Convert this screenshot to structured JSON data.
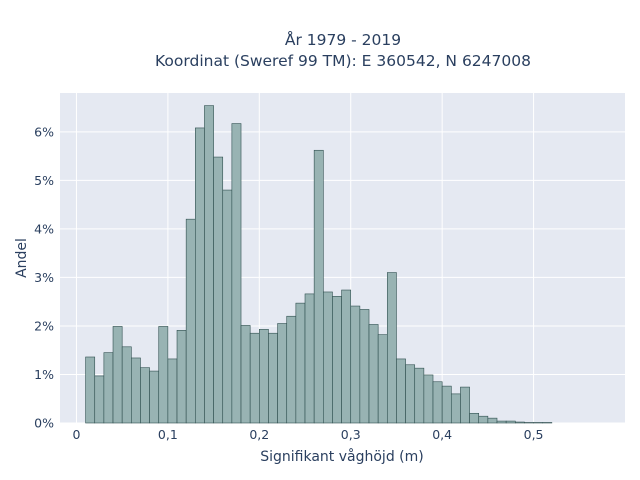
{
  "chart_data": {
    "type": "bar",
    "title_line1": "År 1979 - 2019",
    "title_line2": "Koordinat (Sweref 99 TM): E 360542, N 6247008",
    "xlabel": "Signifikant våghöjd (m)",
    "ylabel": "Andel",
    "xlim": [
      -0.018,
      0.6
    ],
    "ylim": [
      0,
      0.068
    ],
    "bin_width": 0.01,
    "x_ticks": [
      {
        "value": 0,
        "label": "0"
      },
      {
        "value": 0.1,
        "label": "0,1"
      },
      {
        "value": 0.2,
        "label": "0,2"
      },
      {
        "value": 0.3,
        "label": "0,3"
      },
      {
        "value": 0.4,
        "label": "0,4"
      },
      {
        "value": 0.5,
        "label": "0,5"
      }
    ],
    "y_ticks": [
      {
        "value": 0,
        "label": "0%"
      },
      {
        "value": 0.01,
        "label": "1%"
      },
      {
        "value": 0.02,
        "label": "2%"
      },
      {
        "value": 0.03,
        "label": "3%"
      },
      {
        "value": 0.04,
        "label": "4%"
      },
      {
        "value": 0.05,
        "label": "5%"
      },
      {
        "value": 0.06,
        "label": "6%"
      }
    ],
    "grid": true,
    "bar_color": "#98b3b3",
    "bar_edge_color": "#2f4f4f",
    "plot_bg": "#e5e9f2",
    "bins_start": [
      0.01,
      0.02,
      0.03,
      0.04,
      0.05,
      0.06,
      0.07,
      0.08,
      0.09,
      0.1,
      0.11,
      0.12,
      0.13,
      0.14,
      0.15,
      0.16,
      0.17,
      0.18,
      0.19,
      0.2,
      0.21,
      0.22,
      0.23,
      0.24,
      0.25,
      0.26,
      0.27,
      0.28,
      0.29,
      0.3,
      0.31,
      0.32,
      0.33,
      0.34,
      0.35,
      0.36,
      0.37,
      0.38,
      0.39,
      0.4,
      0.41,
      0.42,
      0.43,
      0.44,
      0.45,
      0.46,
      0.47,
      0.48,
      0.49,
      0.5,
      0.51,
      0.52,
      0.53,
      0.54,
      0.55,
      0.56
    ],
    "values": [
      0.0136,
      0.0097,
      0.0145,
      0.0199,
      0.0157,
      0.0134,
      0.0114,
      0.0107,
      0.0199,
      0.0132,
      0.0191,
      0.042,
      0.0608,
      0.0654,
      0.0548,
      0.048,
      0.0617,
      0.0201,
      0.0185,
      0.0193,
      0.0185,
      0.0205,
      0.022,
      0.0247,
      0.0266,
      0.0562,
      0.027,
      0.0261,
      0.0274,
      0.0241,
      0.0234,
      0.0203,
      0.0182,
      0.031,
      0.0132,
      0.012,
      0.0113,
      0.0099,
      0.0085,
      0.0076,
      0.006,
      0.0074,
      0.002,
      0.0014,
      0.001,
      0.0004,
      0.0004,
      0.0002,
      0.0001,
      0.0001,
      0.0001,
      0.0,
      0.0,
      0.0,
      0.0,
      0.0
    ]
  }
}
